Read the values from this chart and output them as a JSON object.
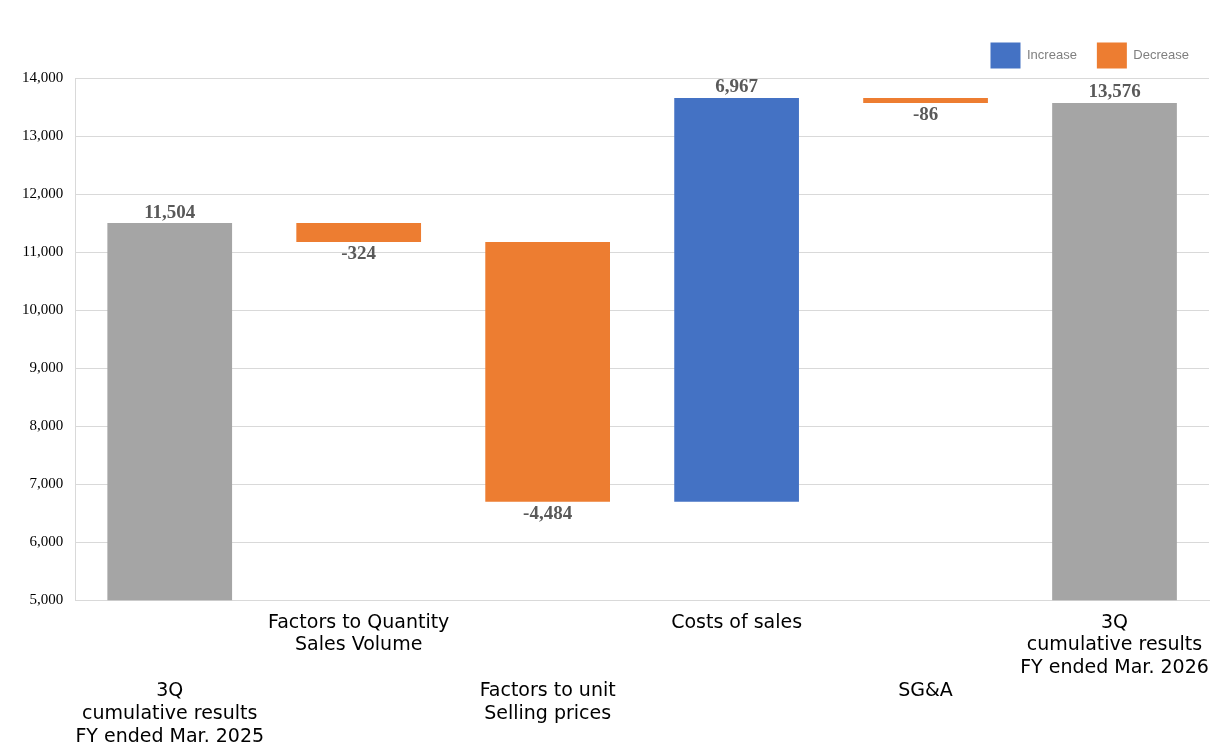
{
  "chart_data": {
    "type": "bar",
    "categories": [
      "3Q\ncumulative results\nFY ended Mar. 2025",
      "Factors to Quantity\nSales Volume",
      "Factors to unit\nSelling prices",
      "Costs of sales",
      "SG&A",
      "3Q\ncumulative results\nFY ended Mar. 2026"
    ],
    "series": [
      {
        "name": "Increase",
        "color": "#4472c4",
        "values": [
          null,
          null,
          null,
          6967,
          null,
          null
        ],
        "base": [
          null,
          null,
          null,
          6696,
          null,
          null
        ],
        "value_labels": [
          null,
          null,
          null,
          "6,967",
          null,
          null
        ]
      },
      {
        "name": "Decrease",
        "color": "#ed7d31",
        "values": [
          null,
          -324,
          -4484,
          null,
          -86,
          null
        ],
        "base": [
          null,
          11504,
          11180,
          null,
          13663,
          null
        ],
        "value_labels": [
          null,
          "-324",
          "-4,484",
          null,
          "-86",
          null
        ]
      },
      {
        "color": "#a5a5a5",
        "values": [
          11504,
          null,
          null,
          null,
          null,
          13576
        ],
        "base": [
          null,
          null,
          null,
          null,
          null,
          null
        ],
        "value_labels": [
          "11,504",
          null,
          null,
          null,
          null,
          "13,576"
        ]
      }
    ],
    "ylim": [
      5000,
      14000
    ],
    "yticks": [
      {
        "value": 5000,
        "label": "5,000"
      },
      {
        "value": 6000,
        "label": "6,000"
      },
      {
        "value": 7000,
        "label": "7,000"
      },
      {
        "value": 8000,
        "label": "8,000"
      },
      {
        "value": 9000,
        "label": "9,000"
      },
      {
        "value": 10000,
        "label": "10,000"
      },
      {
        "value": 11000,
        "label": "11,000"
      },
      {
        "value": 12000,
        "label": "12,000"
      },
      {
        "value": 13000,
        "label": "13,000"
      },
      {
        "value": 14000,
        "label": "14,000"
      }
    ],
    "grid": "y",
    "legend": "top right"
  }
}
